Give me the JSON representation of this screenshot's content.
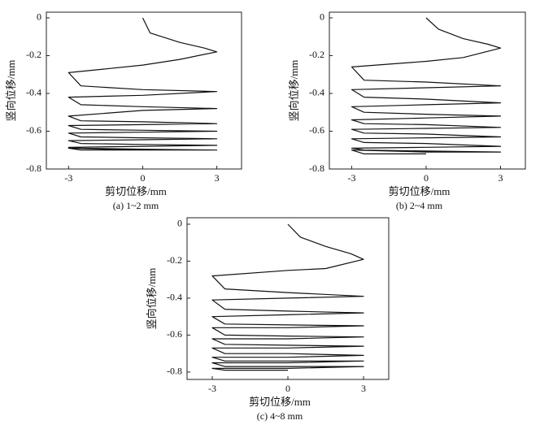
{
  "chart_data": [
    {
      "type": "line",
      "caption": "(a) 1~2 mm",
      "xlabel": "剪切位移/mm",
      "ylabel": "竖向位移/mm",
      "xlim": [
        -3.9,
        4
      ],
      "ylim": [
        -0.8,
        0.03
      ],
      "xticks": [
        -3,
        0,
        3
      ],
      "yticks": [
        0,
        -0.2,
        -0.4,
        -0.6,
        -0.8
      ],
      "color": "#111111",
      "x": [
        0,
        0.3,
        1.5,
        2.5,
        3,
        1.5,
        0,
        -1.5,
        -3,
        -2.5,
        0,
        3,
        0,
        -3,
        -2.5,
        0,
        3,
        0,
        -3,
        -2.5,
        0,
        3,
        0,
        -3,
        -2.5,
        0,
        3,
        0,
        -3,
        -2.5,
        0,
        3,
        0,
        -3,
        -2.5,
        0,
        3,
        0,
        -3,
        -2.5,
        0,
        3,
        0,
        -3,
        -2.5,
        0
      ],
      "values": [
        0,
        -0.08,
        -0.13,
        -0.16,
        -0.18,
        -0.22,
        -0.25,
        -0.27,
        -0.29,
        -0.36,
        -0.38,
        -0.39,
        -0.41,
        -0.42,
        -0.46,
        -0.47,
        -0.48,
        -0.49,
        -0.52,
        -0.545,
        -0.55,
        -0.56,
        -0.565,
        -0.57,
        -0.59,
        -0.595,
        -0.6,
        -0.605,
        -0.61,
        -0.63,
        -0.635,
        -0.64,
        -0.645,
        -0.65,
        -0.665,
        -0.67,
        -0.675,
        -0.68,
        -0.685,
        -0.69,
        -0.695,
        -0.7,
        -0.7,
        -0.69,
        -0.7,
        -0.7
      ]
    },
    {
      "type": "line",
      "caption": "(b) 2~4 mm",
      "xlabel": "剪切位移/mm",
      "ylabel": "竖向位移/mm",
      "xlim": [
        -3.9,
        4
      ],
      "ylim": [
        -0.8,
        0.03
      ],
      "xticks": [
        -3,
        0,
        3
      ],
      "yticks": [
        0,
        -0.2,
        -0.4,
        -0.6,
        -0.8
      ],
      "color": "#111111",
      "x": [
        0,
        0.5,
        1.5,
        2.5,
        3,
        1.5,
        0,
        -3,
        -2.5,
        0,
        3,
        0,
        -3,
        -2.5,
        0,
        3,
        0,
        -3,
        -2.5,
        0,
        3,
        0,
        -3,
        -2.5,
        0,
        3,
        0,
        -3,
        -2.5,
        0,
        3,
        0,
        -3,
        -2.5,
        0,
        3,
        0,
        -3,
        -2.5,
        0,
        3,
        0,
        -3,
        -2.5,
        0
      ],
      "values": [
        0,
        -0.06,
        -0.11,
        -0.14,
        -0.16,
        -0.21,
        -0.23,
        -0.26,
        -0.33,
        -0.34,
        -0.36,
        -0.37,
        -0.38,
        -0.42,
        -0.43,
        -0.45,
        -0.46,
        -0.47,
        -0.5,
        -0.51,
        -0.52,
        -0.53,
        -0.54,
        -0.56,
        -0.565,
        -0.58,
        -0.585,
        -0.59,
        -0.61,
        -0.615,
        -0.63,
        -0.635,
        -0.64,
        -0.66,
        -0.665,
        -0.68,
        -0.685,
        -0.69,
        -0.7,
        -0.705,
        -0.71,
        -0.71,
        -0.7,
        -0.72,
        -0.72
      ]
    },
    {
      "type": "line",
      "caption": "(c) 4~8 mm",
      "xlabel": "剪切位移/mm",
      "ylabel": "竖向位移/mm",
      "xlim": [
        -4,
        4
      ],
      "ylim": [
        -0.84,
        0.035
      ],
      "xticks": [
        -3,
        0,
        3
      ],
      "yticks": [
        0,
        -0.2,
        -0.4,
        -0.6,
        -0.8
      ],
      "color": "#111111",
      "x": [
        0,
        0.5,
        1.5,
        2.5,
        3,
        1.5,
        0,
        -3,
        -2.5,
        0,
        3,
        0,
        -3,
        -2.5,
        0,
        3,
        0,
        -3,
        -2.5,
        0,
        3,
        0,
        -3,
        -2.5,
        0,
        3,
        0,
        -3,
        -2.5,
        0,
        3,
        0,
        -3,
        -2.5,
        0,
        3,
        0,
        -3,
        -2.5,
        0,
        3,
        0,
        -3,
        -2.5,
        0,
        3,
        0,
        -3,
        -2.5,
        0
      ],
      "values": [
        0,
        -0.07,
        -0.12,
        -0.16,
        -0.19,
        -0.24,
        -0.25,
        -0.28,
        -0.35,
        -0.37,
        -0.39,
        -0.4,
        -0.41,
        -0.46,
        -0.47,
        -0.48,
        -0.49,
        -0.5,
        -0.54,
        -0.545,
        -0.55,
        -0.56,
        -0.56,
        -0.6,
        -0.605,
        -0.61,
        -0.62,
        -0.62,
        -0.65,
        -0.655,
        -0.66,
        -0.67,
        -0.67,
        -0.7,
        -0.7,
        -0.71,
        -0.72,
        -0.72,
        -0.74,
        -0.74,
        -0.74,
        -0.75,
        -0.75,
        -0.77,
        -0.77,
        -0.77,
        -0.78,
        -0.78,
        -0.79,
        -0.79
      ]
    }
  ]
}
